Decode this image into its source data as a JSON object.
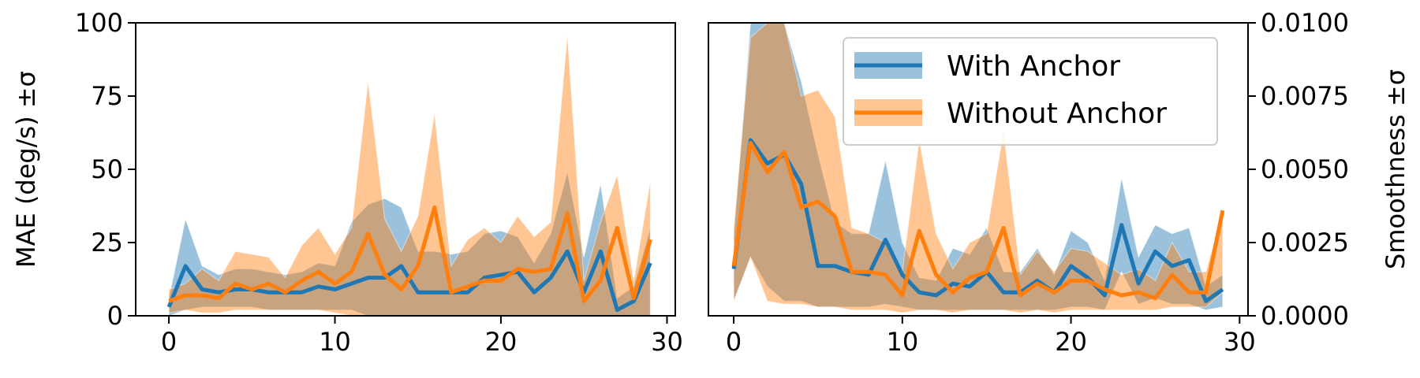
{
  "colors": {
    "with_anchor": "#1f77b4",
    "without_anchor": "#ff7f0e",
    "with_band": "#1f77b4",
    "without_band": "#ff7f0e"
  },
  "chart_data": [
    {
      "type": "line",
      "panel": "left",
      "ylabel": "MAE (deg/s) ±σ",
      "xlim": [
        -2,
        30.5
      ],
      "ylim": [
        0,
        100
      ],
      "xticks": [
        0,
        10,
        20,
        30
      ],
      "yticks": [
        0,
        25,
        50,
        75,
        100
      ],
      "ytick_labels": [
        "0",
        "25",
        "50",
        "75",
        "100"
      ],
      "y_axis_side": "left",
      "grid": false,
      "x": [
        0,
        1,
        2,
        3,
        4,
        5,
        6,
        7,
        8,
        9,
        10,
        11,
        12,
        13,
        14,
        15,
        16,
        17,
        18,
        19,
        20,
        21,
        22,
        23,
        24,
        25,
        26,
        27,
        28,
        29
      ],
      "series": [
        {
          "name": "With Anchor",
          "color_key": "with_anchor",
          "mean": [
            3,
            17,
            9,
            8,
            9,
            9,
            8,
            8,
            8,
            10,
            9,
            11,
            13,
            13,
            17,
            8,
            8,
            8,
            8,
            13,
            14,
            15,
            8,
            13,
            22,
            8,
            22,
            2,
            5,
            18
          ],
          "lower": [
            0,
            2,
            3,
            3,
            3,
            3,
            2,
            2,
            2,
            2,
            2,
            2,
            0,
            0,
            0,
            0,
            0,
            0,
            0,
            0,
            0,
            0,
            0,
            0,
            0,
            0,
            0,
            0,
            0,
            0
          ],
          "upper": [
            6,
            33,
            17,
            14,
            16,
            16,
            15,
            14,
            15,
            18,
            17,
            32,
            38,
            40,
            37,
            22,
            22,
            21,
            22,
            28,
            29,
            27,
            18,
            28,
            49,
            20,
            45,
            6,
            10,
            30
          ]
        },
        {
          "name": "Without Anchor",
          "color_key": "without_anchor",
          "mean": [
            5,
            7,
            7,
            6,
            11,
            9,
            11,
            8,
            12,
            15,
            11,
            15,
            28,
            14,
            9,
            17,
            37,
            8,
            10,
            12,
            12,
            16,
            15,
            16,
            35,
            5,
            12,
            30,
            6,
            26
          ],
          "lower": [
            1,
            2,
            1,
            1,
            2,
            2,
            2,
            2,
            2,
            2,
            1,
            0,
            0,
            0,
            0,
            0,
            0,
            0,
            0,
            0,
            0,
            0,
            0,
            0,
            0,
            0,
            0,
            0,
            0,
            0
          ],
          "upper": [
            9,
            11,
            16,
            12,
            22,
            21,
            20,
            13,
            24,
            30,
            21,
            30,
            80,
            33,
            22,
            34,
            69,
            17,
            26,
            30,
            25,
            34,
            27,
            32,
            96,
            12,
            32,
            48,
            12,
            46
          ]
        }
      ]
    },
    {
      "type": "line",
      "panel": "right",
      "ylabel": "Smoothness ±σ",
      "xlim": [
        -1.5,
        30.5
      ],
      "ylim": [
        0,
        0.01
      ],
      "xticks": [
        0,
        10,
        20,
        30
      ],
      "yticks": [
        0,
        0.0025,
        0.005,
        0.0075,
        0.01
      ],
      "ytick_labels": [
        "0.0000",
        "0.0025",
        "0.0050",
        "0.0075",
        "0.0100"
      ],
      "y_axis_side": "right",
      "grid": false,
      "legend": {
        "placement": "top-right",
        "entries": [
          "With Anchor",
          "Without Anchor"
        ]
      },
      "x": [
        0,
        1,
        2,
        3,
        4,
        5,
        6,
        7,
        8,
        9,
        10,
        11,
        12,
        13,
        14,
        15,
        16,
        17,
        18,
        19,
        20,
        21,
        22,
        23,
        24,
        25,
        26,
        27,
        28,
        29
      ],
      "series": [
        {
          "name": "With Anchor",
          "color_key": "with_anchor",
          "mean": [
            0.0016,
            0.006,
            0.0052,
            0.0055,
            0.0045,
            0.0017,
            0.0017,
            0.0015,
            0.0014,
            0.0026,
            0.0014,
            0.0008,
            0.0007,
            0.0011,
            0.001,
            0.0015,
            0.0008,
            0.0008,
            0.0012,
            0.0008,
            0.0017,
            0.0013,
            0.0007,
            0.0031,
            0.0011,
            0.0022,
            0.0017,
            0.0019,
            0.0005,
            0.0009
          ],
          "lower": [
            0.0005,
            0.002,
            0.001,
            0.0005,
            0.0005,
            0.0003,
            0.0003,
            0.0003,
            0.0003,
            0.0004,
            0.0003,
            0.0002,
            0.0002,
            0.0002,
            0.0002,
            0.0002,
            0.0002,
            0.0002,
            0.0002,
            0.0002,
            0.0003,
            0.0003,
            0.0002,
            0.0015,
            0.0004,
            0.0006,
            0.0004,
            0.0004,
            0.0002,
            0.0003
          ],
          "upper": [
            0.0027,
            0.01,
            0.01,
            0.01,
            0.008,
            0.0055,
            0.0032,
            0.0028,
            0.0028,
            0.0053,
            0.0025,
            0.0013,
            0.0012,
            0.0023,
            0.0021,
            0.003,
            0.0015,
            0.0015,
            0.0023,
            0.0014,
            0.0029,
            0.0025,
            0.0012,
            0.0047,
            0.002,
            0.0031,
            0.0028,
            0.003,
            0.001,
            0.0014
          ]
        },
        {
          "name": "Without Anchor",
          "color_key": "without_anchor",
          "mean": [
            0.0017,
            0.0059,
            0.0049,
            0.0056,
            0.0037,
            0.0039,
            0.0034,
            0.0015,
            0.0015,
            0.0014,
            0.0007,
            0.0029,
            0.0014,
            0.0008,
            0.0013,
            0.0015,
            0.003,
            0.0007,
            0.0011,
            0.0008,
            0.0012,
            0.0012,
            0.0009,
            0.0007,
            0.0008,
            0.0006,
            0.0014,
            0.0008,
            0.0008,
            0.0036
          ],
          "lower": [
            0.0005,
            0.002,
            0.0005,
            0.0004,
            0.0004,
            0.0003,
            0.0003,
            0.0002,
            0.0002,
            0.0002,
            0.0001,
            0.0002,
            0.0002,
            0.0001,
            0.0002,
            0.0002,
            0.0002,
            0.0001,
            0.0002,
            0.0001,
            0.0002,
            0.0002,
            0.0002,
            0.0002,
            0.0002,
            0.0002,
            0.0003,
            0.0003,
            0.0003,
            0.0008
          ],
          "upper": [
            0.003,
            0.0095,
            0.01,
            0.01,
            0.0075,
            0.0077,
            0.0068,
            0.003,
            0.0028,
            0.0025,
            0.0015,
            0.006,
            0.0028,
            0.0016,
            0.0025,
            0.0028,
            0.0063,
            0.0014,
            0.0022,
            0.0015,
            0.0023,
            0.0022,
            0.0018,
            0.0014,
            0.0016,
            0.0012,
            0.0025,
            0.0015,
            0.0015,
            0.0036
          ]
        }
      ]
    }
  ]
}
